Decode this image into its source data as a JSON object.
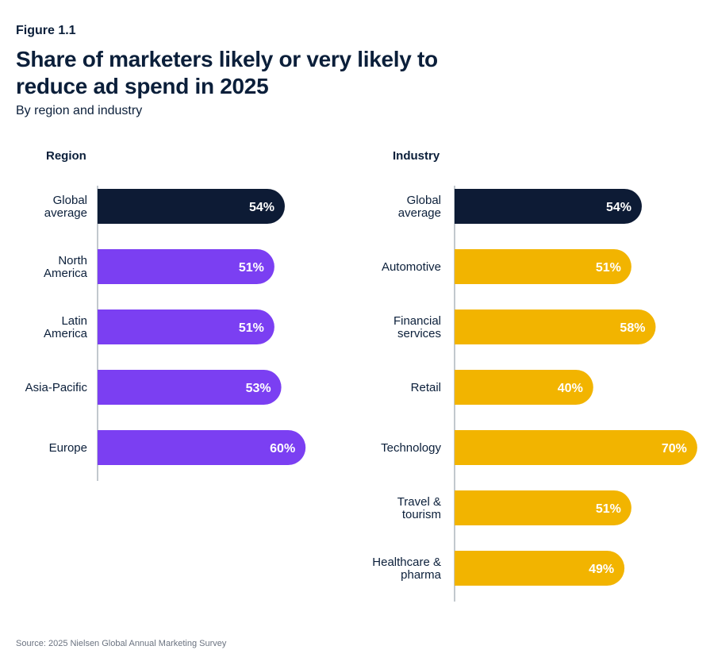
{
  "figure_label": "Figure 1.1",
  "title": "Share of marketers likely or very likely to reduce ad spend in 2025",
  "subtitle": "By region and industry",
  "source": "Source: 2025 Nielsen Global Annual Marketing Survey",
  "colors": {
    "highlight": "#0d1b35",
    "region": "#7b3ff2",
    "industry": "#f2b400"
  },
  "chart_data": [
    {
      "type": "bar",
      "orientation": "horizontal",
      "title": "Region",
      "categories": [
        "Global average",
        "North America",
        "Latin America",
        "Asia-Pacific",
        "Europe"
      ],
      "values": [
        54,
        51,
        51,
        53,
        60
      ],
      "value_labels": [
        "54%",
        "51%",
        "51%",
        "53%",
        "60%"
      ],
      "unit": "%",
      "grid": false
    },
    {
      "type": "bar",
      "orientation": "horizontal",
      "title": "Industry",
      "categories": [
        "Global average",
        "Automotive",
        "Financial services",
        "Retail",
        "Technology",
        "Travel & tourism",
        "Healthcare & pharma"
      ],
      "values": [
        54,
        51,
        58,
        40,
        70,
        51,
        49
      ],
      "value_labels": [
        "54%",
        "51%",
        "58%",
        "40%",
        "70%",
        "51%",
        "49%"
      ],
      "unit": "%",
      "grid": false
    }
  ]
}
